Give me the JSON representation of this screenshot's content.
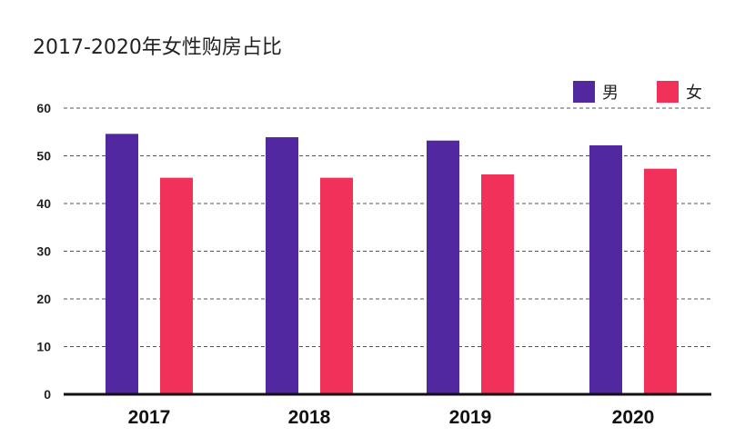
{
  "chart_data": {
    "type": "bar",
    "title": "2017-2020年女性购房占比",
    "categories": [
      "2017",
      "2018",
      "2019",
      "2020"
    ],
    "series": [
      {
        "name": "男",
        "color": "#5228a0",
        "values": [
          54.6,
          53.9,
          53.2,
          52.2
        ]
      },
      {
        "name": "女",
        "color": "#f1315a",
        "values": [
          45.4,
          45.4,
          46.1,
          47.3
        ]
      }
    ],
    "yticks": [
      0,
      10,
      20,
      30,
      40,
      50,
      60
    ],
    "ylim": [
      0,
      60
    ],
    "xlabel": "",
    "ylabel": "",
    "grid": true,
    "legend_position": "top-right"
  }
}
